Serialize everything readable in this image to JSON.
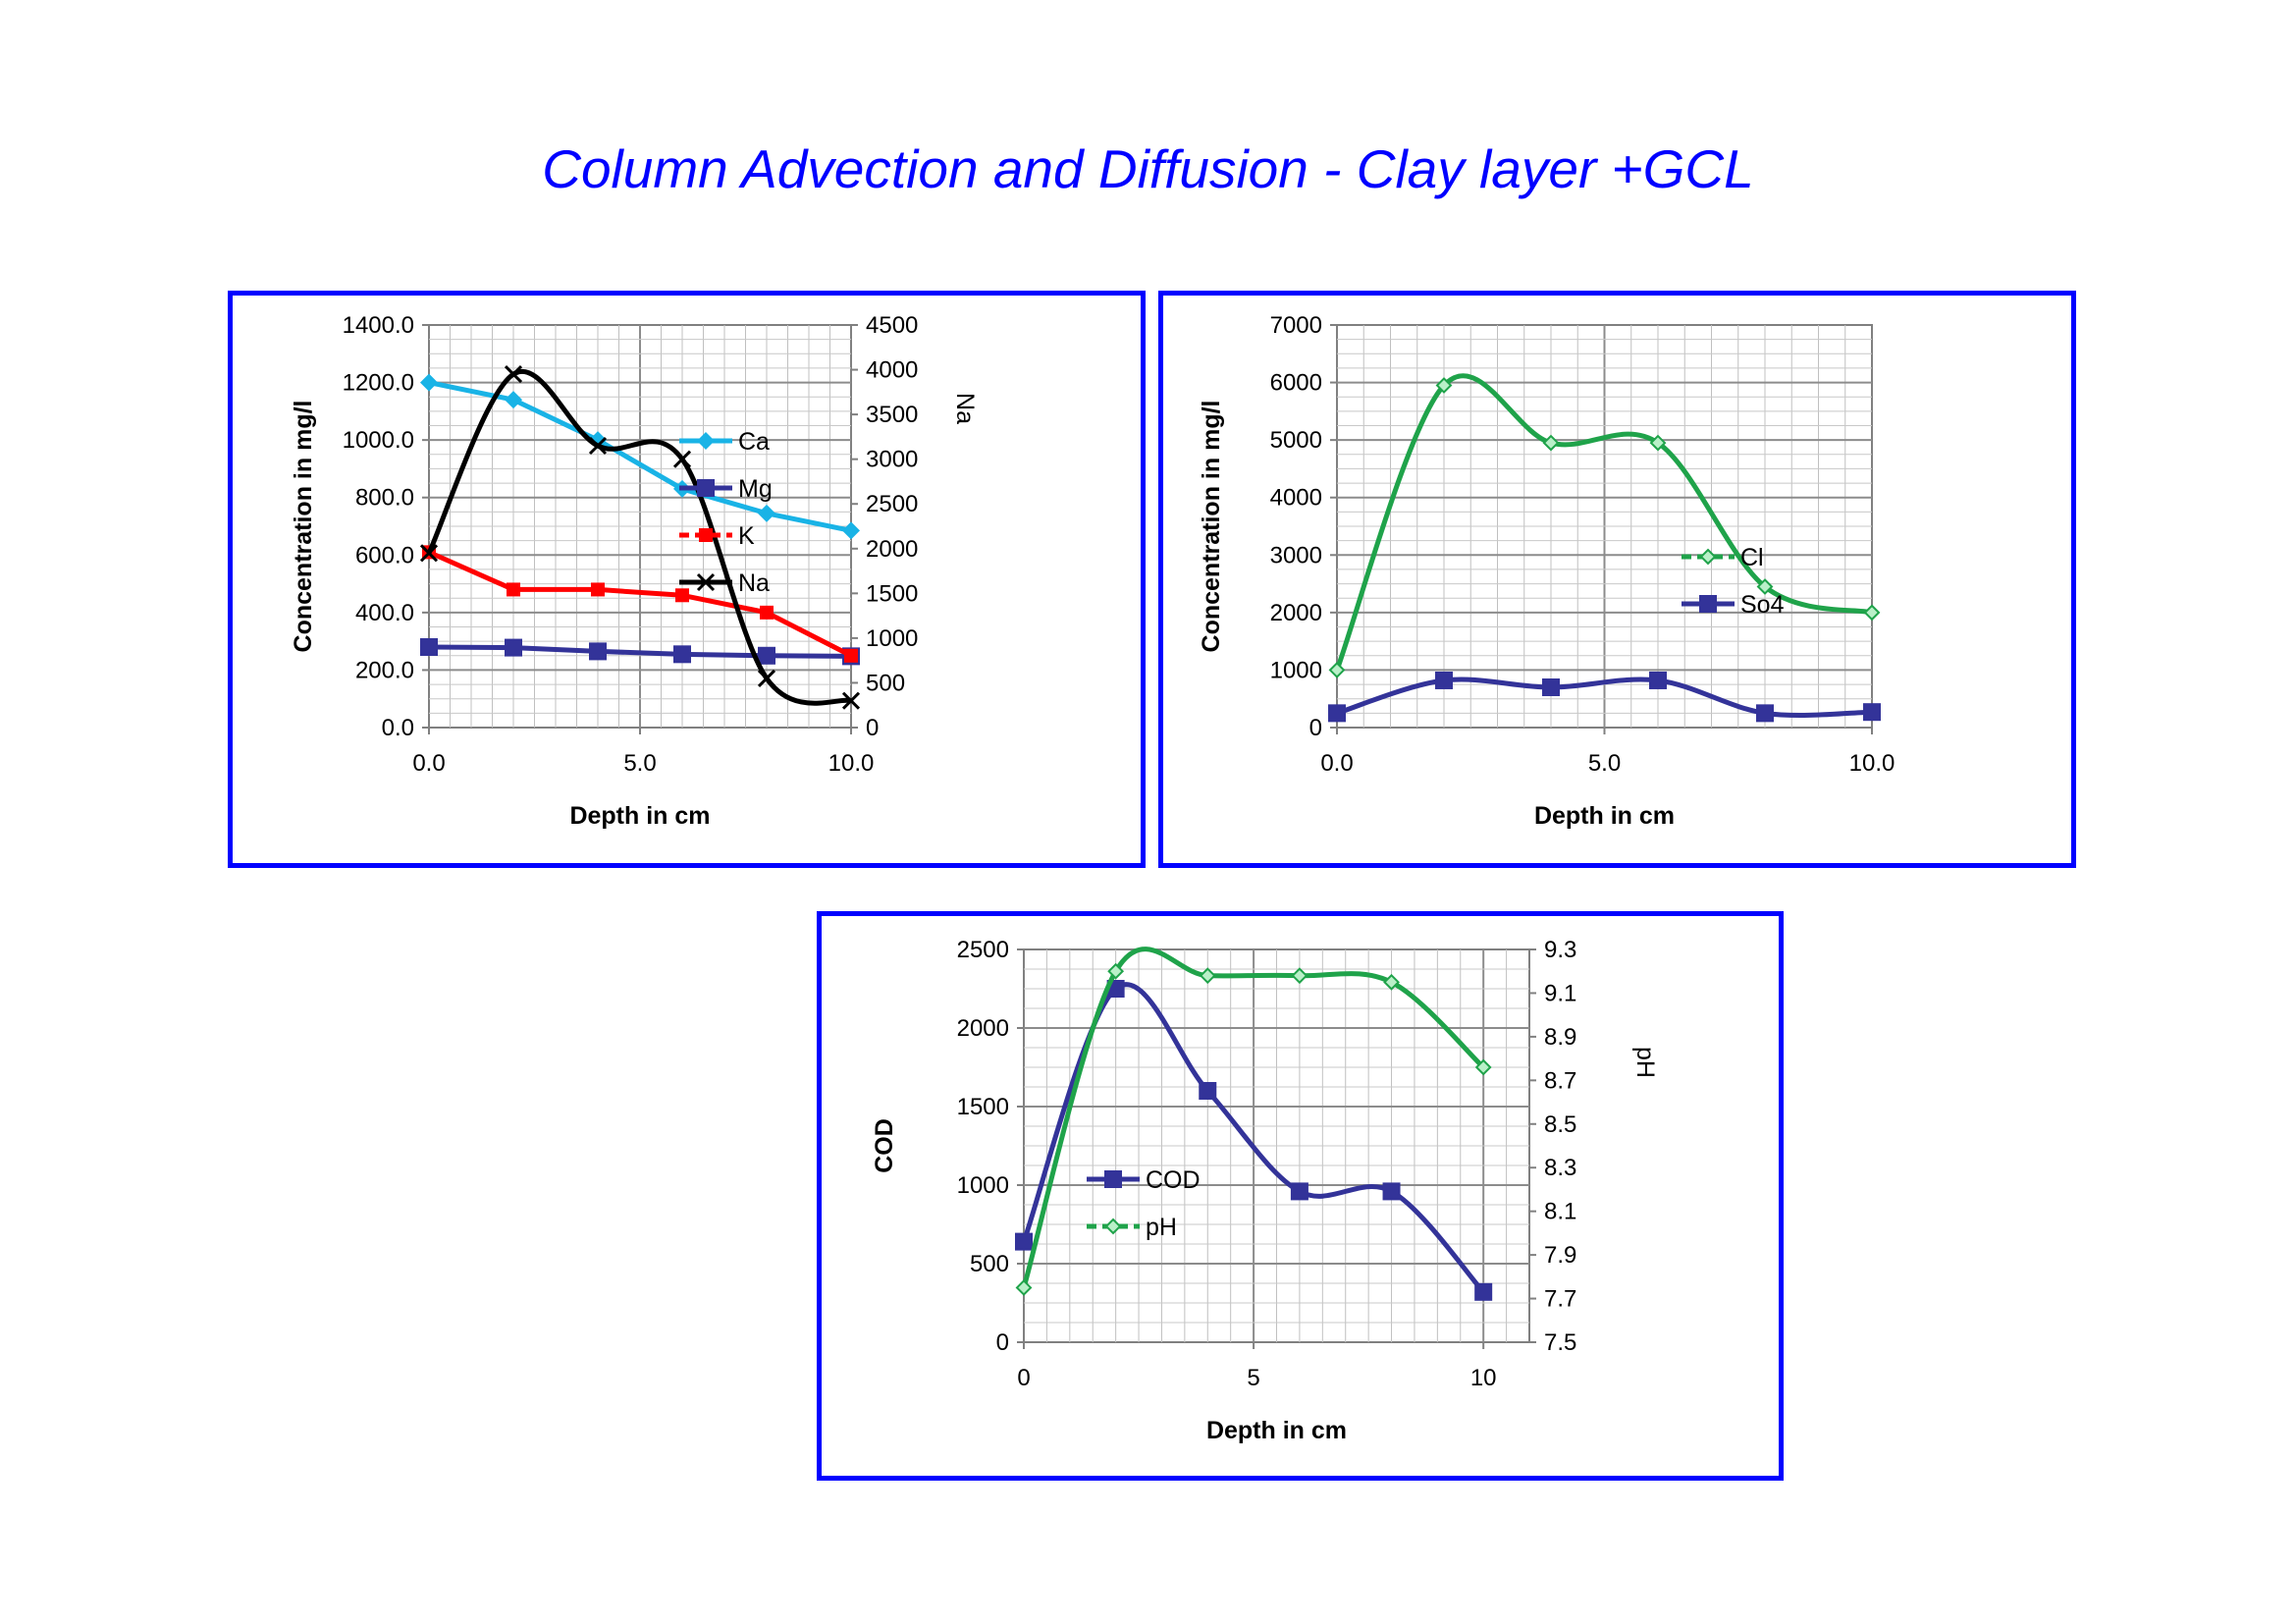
{
  "page": {
    "title": "Column Advection and Diffusion - Clay layer +GCL"
  },
  "colors": {
    "title": "#0000ff",
    "border": "#0000ff",
    "grid": "#b3b3b3"
  },
  "chart_data": [
    {
      "type": "line",
      "id": "cations",
      "xlabel": "Depth in cm",
      "ylabel": "Concentration in mg/l",
      "y2label": "Na",
      "xlim": [
        0,
        10
      ],
      "xticks": [
        "0.0",
        "5.0",
        "10.0"
      ],
      "ylim": [
        0,
        1400
      ],
      "yticks": [
        "0.0",
        "200.0",
        "400.0",
        "600.0",
        "800.0",
        "1000.0",
        "1200.0",
        "1400.0"
      ],
      "y2lim": [
        0,
        4500
      ],
      "y2ticks": [
        "0",
        "500",
        "1000",
        "1500",
        "2000",
        "2500",
        "3000",
        "3500",
        "4000",
        "4500"
      ],
      "series": [
        {
          "name": "Ca",
          "axis": "left",
          "color": "#19b3e6",
          "marker": "diamond",
          "smooth": false,
          "x": [
            0,
            2,
            4,
            6,
            8,
            10
          ],
          "values": [
            1200,
            1140,
            1000,
            830,
            745,
            685
          ]
        },
        {
          "name": "Mg",
          "axis": "left",
          "color": "#333399",
          "marker": "square",
          "smooth": false,
          "x": [
            0,
            2,
            4,
            6,
            8,
            10
          ],
          "values": [
            280,
            278,
            265,
            255,
            250,
            248
          ]
        },
        {
          "name": "K",
          "axis": "left",
          "color": "#ff0000",
          "marker": "square-small",
          "dash": true,
          "smooth": false,
          "x": [
            0,
            2,
            4,
            6,
            8,
            10
          ],
          "values": [
            610,
            480,
            480,
            460,
            400,
            250
          ]
        },
        {
          "name": "Na",
          "axis": "right",
          "color": "#000000",
          "marker": "x",
          "smooth": true,
          "x": [
            0,
            2,
            4,
            6,
            8,
            10
          ],
          "values": [
            1950,
            3950,
            3150,
            3000,
            550,
            300
          ]
        }
      ]
    },
    {
      "type": "line",
      "id": "anions",
      "xlabel": "Depth in cm",
      "ylabel": "Concentration in mg/l",
      "xlim": [
        0,
        10
      ],
      "xticks": [
        "0.0",
        "5.0",
        "10.0"
      ],
      "ylim": [
        0,
        7000
      ],
      "yticks": [
        "0",
        "1000",
        "2000",
        "3000",
        "4000",
        "5000",
        "6000",
        "7000"
      ],
      "series": [
        {
          "name": "Cl",
          "axis": "left",
          "color": "#1fa34a",
          "marker": "diamond-small",
          "dash": true,
          "smooth": true,
          "x": [
            0,
            2,
            4,
            6,
            8,
            10
          ],
          "values": [
            1000,
            5950,
            4950,
            4950,
            2450,
            2000
          ]
        },
        {
          "name": "So4",
          "axis": "left",
          "color": "#333399",
          "marker": "square",
          "smooth": true,
          "x": [
            0,
            2,
            4,
            6,
            8,
            10
          ],
          "values": [
            250,
            820,
            700,
            820,
            250,
            270
          ]
        }
      ]
    },
    {
      "type": "line",
      "id": "cod-ph",
      "xlabel": "Depth in cm",
      "ylabel": "COD",
      "y2label": "pH",
      "xlim": [
        0,
        11
      ],
      "xticks": [
        "0",
        "5",
        "10"
      ],
      "ylim": [
        0,
        2500
      ],
      "yticks": [
        "0",
        "500",
        "1000",
        "1500",
        "2000",
        "2500"
      ],
      "y2lim": [
        7.5,
        9.3
      ],
      "y2ticks": [
        "7.5",
        "7.7",
        "7.9",
        "8.1",
        "8.3",
        "8.5",
        "8.7",
        "8.9",
        "9.1",
        "9.3"
      ],
      "series": [
        {
          "name": "COD",
          "axis": "left",
          "color": "#333399",
          "marker": "square",
          "smooth": true,
          "x": [
            0,
            2,
            4,
            6,
            8,
            10
          ],
          "values": [
            640,
            2250,
            1600,
            960,
            960,
            320
          ]
        },
        {
          "name": "pH",
          "axis": "right",
          "color": "#1fa34a",
          "marker": "diamond-small",
          "dash": true,
          "smooth": true,
          "x": [
            0,
            2,
            4,
            6,
            8,
            10
          ],
          "values": [
            7.75,
            9.2,
            9.18,
            9.18,
            9.15,
            8.76
          ]
        }
      ]
    }
  ]
}
